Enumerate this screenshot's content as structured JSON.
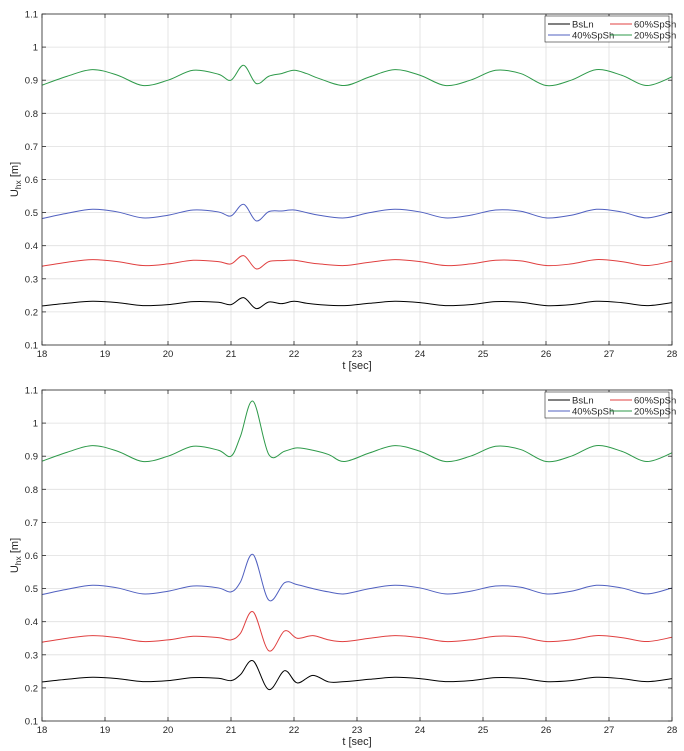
{
  "chart_data": [
    {
      "type": "line",
      "xlabel": "t [sec]",
      "ylabel_main": "U",
      "ylabel_sub": "hx",
      "ylabel_unit": " [m]",
      "xlim": [
        18,
        28
      ],
      "ylim": [
        0.1,
        1.1
      ],
      "xticks": [
        "18",
        "19",
        "20",
        "21",
        "22",
        "23",
        "24",
        "25",
        "26",
        "27",
        "28"
      ],
      "yticks": [
        "0.1",
        "0.2",
        "0.3",
        "0.4",
        "0.5",
        "0.6",
        "0.7",
        "0.8",
        "0.9",
        "1",
        "1.1"
      ],
      "grid": true,
      "legend_position": "top-right",
      "series": [
        {
          "name": "BsLn",
          "color": "#000000",
          "x": [
            18,
            18.4,
            18.8,
            19.2,
            19.6,
            20,
            20.4,
            20.8,
            21,
            21.2,
            21.4,
            21.6,
            21.8,
            22,
            22.2,
            22.4,
            22.8,
            23.2,
            23.6,
            24,
            24.4,
            24.8,
            25.2,
            25.6,
            26,
            26.4,
            26.8,
            27.2,
            27.6,
            28
          ],
          "y": [
            0.218,
            0.226,
            0.232,
            0.228,
            0.219,
            0.222,
            0.231,
            0.229,
            0.222,
            0.243,
            0.21,
            0.23,
            0.225,
            0.232,
            0.226,
            0.222,
            0.219,
            0.226,
            0.232,
            0.228,
            0.219,
            0.222,
            0.231,
            0.229,
            0.219,
            0.222,
            0.232,
            0.228,
            0.219,
            0.228
          ]
        },
        {
          "name": "60%SpSh",
          "color": "#e04040",
          "x": [
            18,
            18.4,
            18.8,
            19.2,
            19.6,
            20,
            20.4,
            20.8,
            21,
            21.2,
            21.4,
            21.6,
            21.8,
            22,
            22.2,
            22.4,
            22.8,
            23.2,
            23.6,
            24,
            24.4,
            24.8,
            25.2,
            25.6,
            26,
            26.4,
            26.8,
            27.2,
            27.6,
            28
          ],
          "y": [
            0.338,
            0.35,
            0.358,
            0.352,
            0.34,
            0.345,
            0.356,
            0.352,
            0.345,
            0.37,
            0.33,
            0.352,
            0.355,
            0.356,
            0.35,
            0.345,
            0.34,
            0.35,
            0.358,
            0.352,
            0.34,
            0.345,
            0.356,
            0.354,
            0.34,
            0.345,
            0.358,
            0.352,
            0.34,
            0.353
          ]
        },
        {
          "name": "40%SpSh",
          "color": "#5060c0",
          "x": [
            18,
            18.4,
            18.8,
            19.2,
            19.6,
            20,
            20.4,
            20.8,
            21,
            21.2,
            21.4,
            21.6,
            21.8,
            22,
            22.2,
            22.4,
            22.8,
            23.2,
            23.6,
            24,
            24.4,
            24.8,
            25.2,
            25.6,
            26,
            26.4,
            26.8,
            27.2,
            27.6,
            28
          ],
          "y": [
            0.482,
            0.498,
            0.51,
            0.502,
            0.484,
            0.492,
            0.508,
            0.502,
            0.49,
            0.525,
            0.475,
            0.503,
            0.505,
            0.508,
            0.5,
            0.492,
            0.484,
            0.5,
            0.51,
            0.502,
            0.484,
            0.492,
            0.508,
            0.504,
            0.484,
            0.492,
            0.51,
            0.502,
            0.484,
            0.502
          ]
        },
        {
          "name": "20%SpSh",
          "color": "#2e9a4a",
          "x": [
            18,
            18.4,
            18.8,
            19.2,
            19.6,
            20,
            20.4,
            20.8,
            21,
            21.2,
            21.4,
            21.6,
            21.8,
            22,
            22.2,
            22.4,
            22.8,
            23.2,
            23.6,
            24,
            24.4,
            24.8,
            25.2,
            25.6,
            26,
            26.4,
            26.8,
            27.2,
            27.6,
            28
          ],
          "y": [
            0.885,
            0.912,
            0.932,
            0.915,
            0.884,
            0.9,
            0.93,
            0.918,
            0.9,
            0.945,
            0.89,
            0.912,
            0.92,
            0.93,
            0.92,
            0.905,
            0.884,
            0.91,
            0.932,
            0.915,
            0.884,
            0.9,
            0.93,
            0.92,
            0.884,
            0.9,
            0.932,
            0.915,
            0.884,
            0.91
          ]
        }
      ]
    },
    {
      "type": "line",
      "xlabel": "t [sec]",
      "ylabel_main": "U",
      "ylabel_sub": "hx",
      "ylabel_unit": " [m]",
      "xlim": [
        18,
        28
      ],
      "ylim": [
        0.1,
        1.1
      ],
      "xticks": [
        "18",
        "19",
        "20",
        "21",
        "22",
        "23",
        "24",
        "25",
        "26",
        "27",
        "28"
      ],
      "yticks": [
        "0.1",
        "0.2",
        "0.3",
        "0.4",
        "0.5",
        "0.6",
        "0.7",
        "0.8",
        "0.9",
        "1",
        "1.1"
      ],
      "grid": true,
      "legend_position": "top-right",
      "series": [
        {
          "name": "BsLn",
          "color": "#000000",
          "x": [
            18,
            18.4,
            18.8,
            19.2,
            19.6,
            20,
            20.4,
            20.8,
            21,
            21.15,
            21.35,
            21.6,
            21.85,
            22.05,
            22.3,
            22.55,
            22.8,
            23.2,
            23.6,
            24,
            24.4,
            24.8,
            25.2,
            25.6,
            26,
            26.4,
            26.8,
            27.2,
            27.6,
            28
          ],
          "y": [
            0.218,
            0.226,
            0.232,
            0.228,
            0.219,
            0.222,
            0.231,
            0.229,
            0.222,
            0.24,
            0.282,
            0.195,
            0.252,
            0.215,
            0.238,
            0.218,
            0.219,
            0.226,
            0.232,
            0.228,
            0.219,
            0.222,
            0.231,
            0.229,
            0.219,
            0.222,
            0.232,
            0.228,
            0.219,
            0.228
          ]
        },
        {
          "name": "60%SpSh",
          "color": "#e04040",
          "x": [
            18,
            18.4,
            18.8,
            19.2,
            19.6,
            20,
            20.4,
            20.8,
            21,
            21.15,
            21.35,
            21.6,
            21.85,
            22.05,
            22.3,
            22.55,
            22.8,
            23.2,
            23.6,
            24,
            24.4,
            24.8,
            25.2,
            25.6,
            26,
            26.4,
            26.8,
            27.2,
            27.6,
            28
          ],
          "y": [
            0.338,
            0.35,
            0.358,
            0.352,
            0.34,
            0.345,
            0.356,
            0.352,
            0.345,
            0.365,
            0.43,
            0.312,
            0.372,
            0.35,
            0.358,
            0.345,
            0.34,
            0.35,
            0.358,
            0.352,
            0.34,
            0.345,
            0.356,
            0.354,
            0.34,
            0.345,
            0.358,
            0.352,
            0.34,
            0.353
          ]
        },
        {
          "name": "40%SpSh",
          "color": "#5060c0",
          "x": [
            18,
            18.4,
            18.8,
            19.2,
            19.6,
            20,
            20.4,
            20.8,
            21,
            21.15,
            21.35,
            21.6,
            21.85,
            22.05,
            22.3,
            22.55,
            22.8,
            23.2,
            23.6,
            24,
            24.4,
            24.8,
            25.2,
            25.6,
            26,
            26.4,
            26.8,
            27.2,
            27.6,
            28
          ],
          "y": [
            0.482,
            0.498,
            0.51,
            0.502,
            0.484,
            0.492,
            0.508,
            0.502,
            0.49,
            0.52,
            0.603,
            0.465,
            0.518,
            0.512,
            0.5,
            0.49,
            0.484,
            0.5,
            0.51,
            0.502,
            0.484,
            0.492,
            0.508,
            0.504,
            0.484,
            0.492,
            0.51,
            0.502,
            0.484,
            0.502
          ]
        },
        {
          "name": "20%SpSh",
          "color": "#2e9a4a",
          "x": [
            18,
            18.4,
            18.8,
            19.2,
            19.6,
            20,
            20.4,
            20.8,
            21,
            21.15,
            21.35,
            21.6,
            21.85,
            22.05,
            22.3,
            22.55,
            22.8,
            23.2,
            23.6,
            24,
            24.4,
            24.8,
            25.2,
            25.6,
            26,
            26.4,
            26.8,
            27.2,
            27.6,
            28
          ],
          "y": [
            0.885,
            0.912,
            0.932,
            0.915,
            0.884,
            0.9,
            0.93,
            0.918,
            0.9,
            0.96,
            1.066,
            0.905,
            0.915,
            0.925,
            0.918,
            0.905,
            0.884,
            0.91,
            0.932,
            0.915,
            0.884,
            0.9,
            0.93,
            0.92,
            0.884,
            0.9,
            0.932,
            0.915,
            0.884,
            0.91
          ]
        }
      ]
    }
  ]
}
